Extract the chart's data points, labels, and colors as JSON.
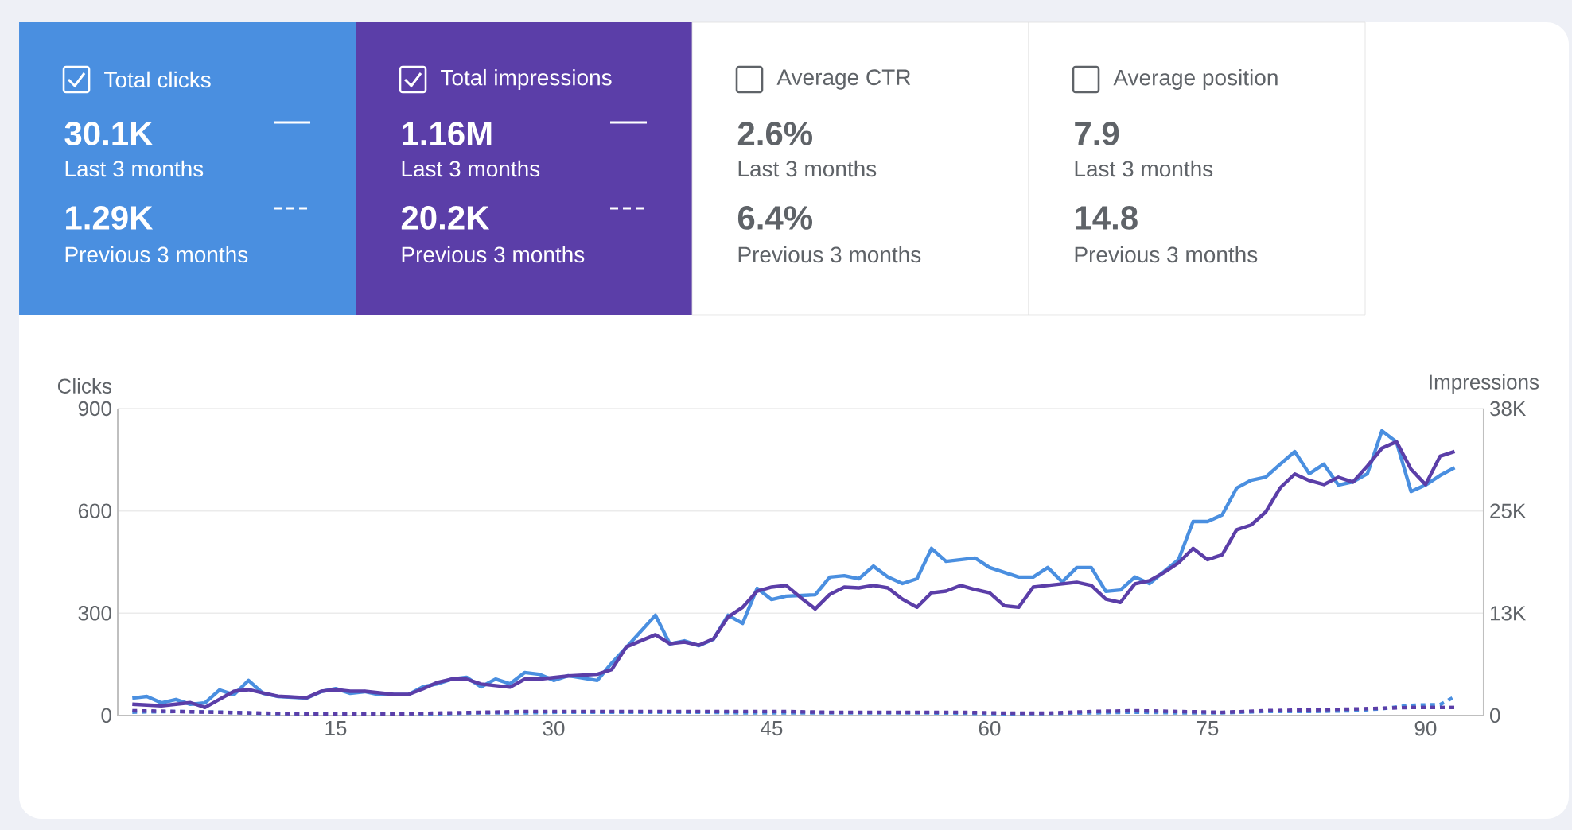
{
  "chart_data": {
    "type": "line",
    "ylabel": "Clicks",
    "y2label": "Impressions",
    "xlim": [
      0,
      94
    ],
    "xticks": [
      15,
      30,
      45,
      60,
      75,
      90
    ],
    "ylim": [
      0,
      900
    ],
    "yticks": [
      0,
      300,
      600,
      900
    ],
    "y2lim": [
      0,
      38000
    ],
    "y2ticks": [
      0,
      {
        "value": 12667,
        "label": "13K"
      },
      {
        "value": 25333,
        "label": "25K"
      },
      {
        "value": 38000,
        "label": "38K"
      }
    ],
    "grid": "y",
    "annotations": [
      "Total clicks",
      "30.1K",
      "Last 3 months",
      "1.29K",
      "Previous 3 months",
      "Total impressions",
      "1.16M",
      "Last 3 months",
      "20.2K",
      "Previous 3 months",
      "Average CTR",
      "2.6%",
      "Last 3 months",
      "6.4%",
      "Previous 3 months",
      "Average position",
      "7.9",
      "Last 3 months",
      "14.8",
      "Previous 3 months"
    ],
    "series": [
      {
        "color": "#4a8fe0",
        "line_style": "solid",
        "x": [
          1,
          2,
          3,
          4,
          5,
          6,
          7,
          8,
          9,
          10,
          11,
          13,
          14,
          15,
          16,
          17,
          18,
          20,
          21,
          22,
          23,
          24,
          25,
          26,
          27,
          28,
          29,
          30,
          31,
          33,
          34,
          35,
          37,
          38,
          39,
          40,
          41,
          42,
          43,
          44,
          45,
          46,
          48,
          49,
          50,
          51,
          52,
          53,
          54,
          55,
          56,
          57,
          58,
          59,
          60,
          62,
          63,
          64,
          65,
          66,
          67,
          68,
          69,
          70,
          71,
          73,
          74,
          75,
          76,
          77,
          78,
          79,
          80,
          81,
          82,
          83,
          84,
          85,
          86,
          87,
          88,
          89,
          90,
          91,
          92
        ],
        "values": [
          51,
          56,
          37,
          47,
          33,
          37,
          75,
          61,
          103,
          65,
          56,
          51,
          70,
          79,
          65,
          70,
          61,
          61,
          84,
          93,
          107,
          112,
          84,
          107,
          93,
          126,
          121,
          103,
          117,
          103,
          154,
          200,
          294,
          210,
          219,
          205,
          224,
          294,
          270,
          373,
          340,
          350,
          354,
          406,
          410,
          401,
          438,
          406,
          387,
          401,
          490,
          452,
          457,
          462,
          434,
          406,
          406,
          434,
          392,
          434,
          434,
          364,
          368,
          406,
          387,
          457,
          569,
          569,
          588,
          667,
          690,
          699,
          737,
          774,
          709,
          737,
          676,
          685,
          709,
          835,
          802,
          657,
          676,
          704,
          727
        ]
      },
      {
        "color": "#5b3ea8",
        "line_style": "solid",
        "axis": "y2",
        "x": [
          1,
          3,
          5,
          6,
          7,
          8,
          9,
          10,
          11,
          13,
          14,
          15,
          16,
          17,
          19,
          20,
          21,
          22,
          23,
          24,
          25,
          26,
          27,
          28,
          29,
          30,
          31,
          33,
          34,
          35,
          37,
          38,
          39,
          40,
          41,
          42,
          43,
          44,
          45,
          46,
          47,
          48,
          49,
          50,
          51,
          52,
          53,
          54,
          55,
          56,
          57,
          58,
          59,
          60,
          61,
          62,
          63,
          64,
          65,
          66,
          67,
          68,
          69,
          70,
          71,
          72,
          73,
          74,
          75,
          76,
          77,
          78,
          79,
          80,
          81,
          82,
          83,
          84,
          85,
          86,
          87,
          88,
          89,
          90,
          91,
          92
        ],
        "values": [
          1400,
          1200,
          1600,
          1000,
          2000,
          3000,
          3200,
          2800,
          2400,
          2200,
          3000,
          3200,
          3000,
          3000,
          2600,
          2600,
          3300,
          4100,
          4500,
          4500,
          3900,
          3700,
          3500,
          4500,
          4500,
          4700,
          4900,
          5100,
          5700,
          8500,
          10000,
          8900,
          9100,
          8700,
          9500,
          12200,
          13400,
          15400,
          15900,
          16100,
          14600,
          13200,
          15000,
          15900,
          15800,
          16100,
          15800,
          14400,
          13400,
          15200,
          15400,
          16100,
          15600,
          15200,
          13600,
          13400,
          15900,
          16100,
          16300,
          16500,
          16100,
          14400,
          14000,
          16300,
          16700,
          17700,
          18900,
          20700,
          19300,
          19900,
          23000,
          23600,
          25200,
          28200,
          29900,
          29100,
          28600,
          29500,
          28900,
          30900,
          33100,
          33900,
          30500,
          28600,
          32100,
          32700
        ]
      },
      {
        "color": "#4a8fe0",
        "line_style": "dashed",
        "x": [
          1,
          4,
          7,
          10,
          13,
          16,
          19,
          22,
          25,
          28,
          31,
          34,
          37,
          40,
          43,
          46,
          49,
          52,
          55,
          58,
          61,
          64,
          67,
          70,
          73,
          76,
          79,
          82,
          85,
          87,
          89,
          91,
          92
        ],
        "values": [
          10,
          12,
          10,
          6,
          5,
          5,
          6,
          5,
          8,
          8,
          10,
          10,
          10,
          10,
          8,
          8,
          8,
          8,
          8,
          7,
          5,
          6,
          8,
          10,
          8,
          8,
          12,
          12,
          14,
          20,
          30,
          32,
          55
        ]
      },
      {
        "color": "#5b3ea8",
        "line_style": "dashed",
        "axis": "y2",
        "x": [
          1,
          4,
          7,
          10,
          13,
          16,
          19,
          22,
          25,
          28,
          31,
          34,
          37,
          40,
          43,
          46,
          49,
          52,
          55,
          58,
          61,
          64,
          67,
          70,
          73,
          76,
          79,
          82,
          85,
          87,
          89,
          91,
          92
        ],
        "values": [
          600,
          500,
          400,
          300,
          200,
          200,
          200,
          300,
          400,
          500,
          500,
          500,
          500,
          500,
          500,
          500,
          400,
          400,
          400,
          400,
          300,
          300,
          500,
          600,
          500,
          400,
          600,
          700,
          800,
          900,
          1000,
          1000,
          1000
        ]
      }
    ]
  }
}
